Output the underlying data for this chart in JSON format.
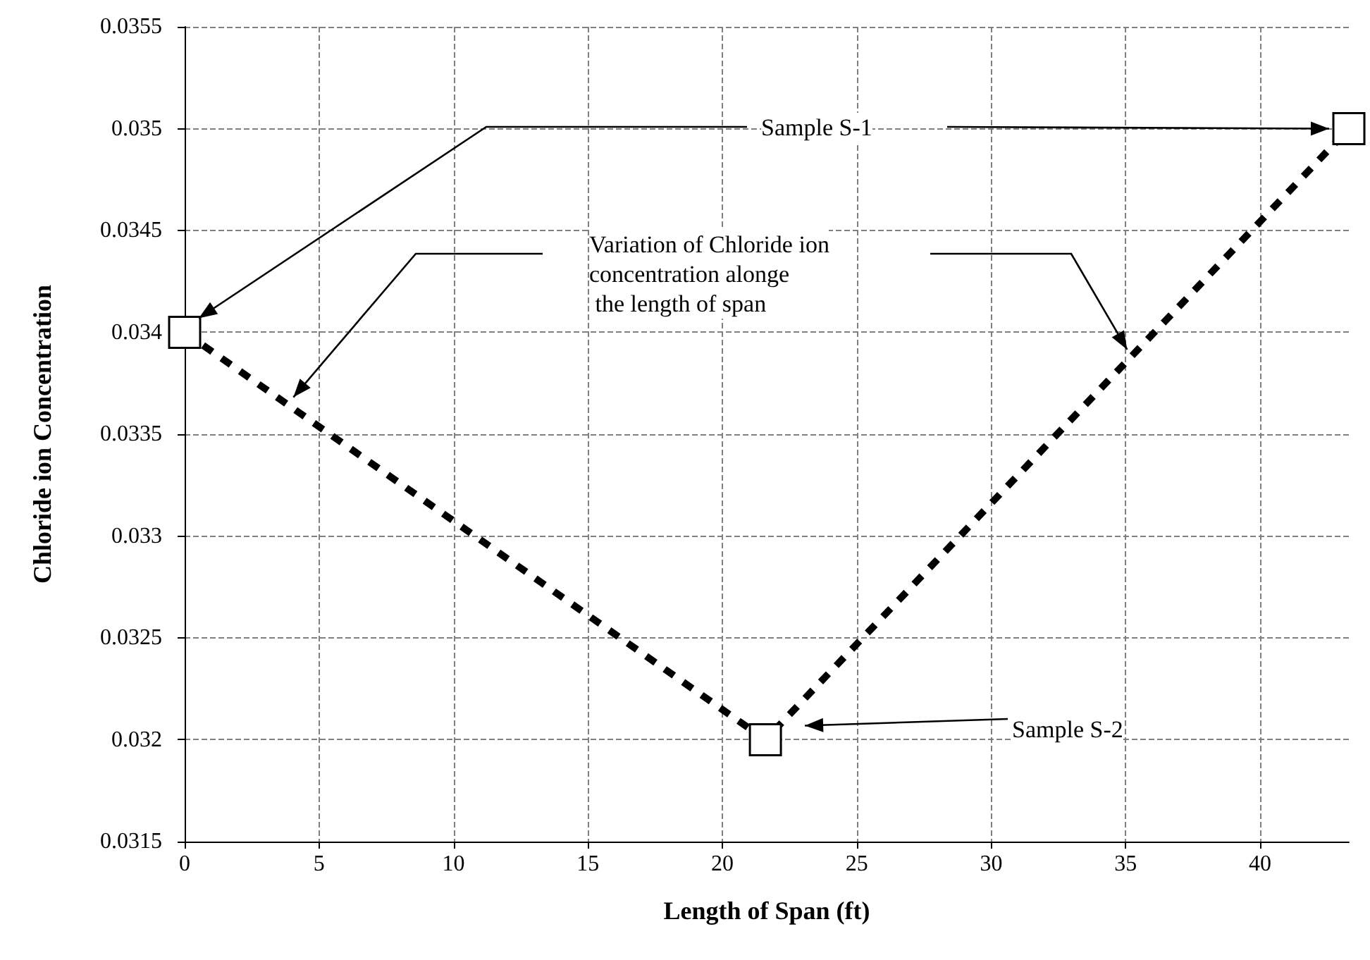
{
  "chart_data": {
    "type": "line",
    "xlabel": "Length of Span (ft)",
    "ylabel": "Chloride ion Concentration",
    "x": [
      0,
      21.6,
      43.3
    ],
    "series": [
      {
        "color": "#000000",
        "values": [
          0.034,
          0.032,
          0.035
        ]
      }
    ],
    "xlim": [
      0,
      43.3
    ],
    "xticks": [
      0,
      5,
      10,
      15,
      20,
      25,
      30,
      35,
      40
    ],
    "ylim": [
      0.0315,
      0.0355
    ],
    "yticks": [
      0.0315,
      0.032,
      0.0325,
      0.033,
      0.0335,
      0.034,
      0.0345,
      0.035,
      0.0355
    ],
    "grid": true,
    "marker": "square",
    "line_style": "dashed",
    "annotations": [
      "Sample S-1",
      "Variation of Chloride ion\nconcentration alonge\n the length of span",
      "Sample S-2"
    ]
  }
}
